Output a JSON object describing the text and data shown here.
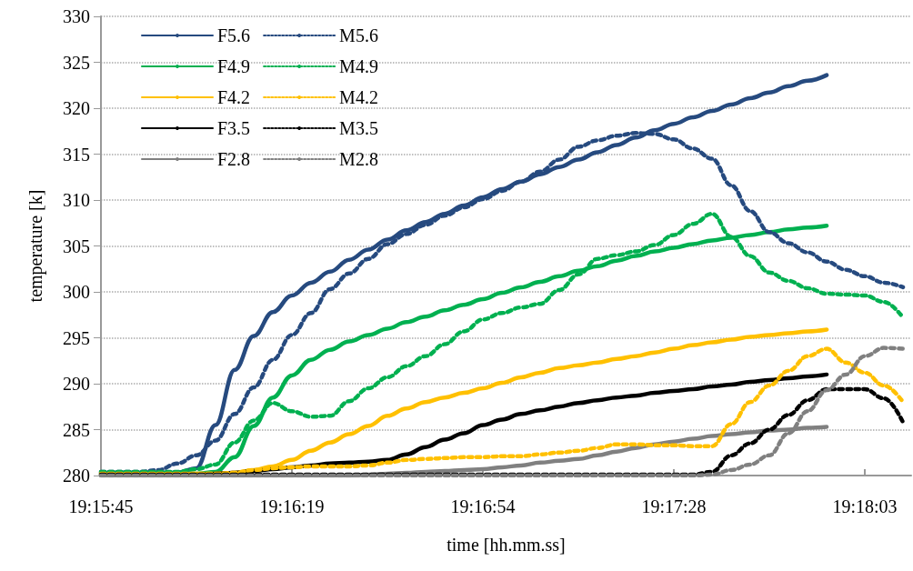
{
  "chart_data": {
    "type": "line",
    "xlabel": "time [hh.mm.ss]",
    "ylabel": "temperature [k]",
    "xlim": [
      19.2625,
      19.30316
    ],
    "xticks": [
      {
        "value": 19.2625,
        "label": "19:15:45"
      },
      {
        "value": 19.272083,
        "label": "19:16:19"
      },
      {
        "value": 19.281667,
        "label": "19:16:54"
      },
      {
        "value": 19.29125,
        "label": "19:17:28"
      },
      {
        "value": 19.300833,
        "label": "19:18:03"
      }
    ],
    "ylim": [
      280,
      330
    ],
    "yticks": [
      280,
      285,
      290,
      295,
      300,
      305,
      310,
      315,
      320,
      325,
      330
    ],
    "grid": "y",
    "legend": "top left",
    "marker": "none",
    "x": [
      19.2625,
      19.26346,
      19.26442,
      19.26538,
      19.26633,
      19.26729,
      19.26825,
      19.26921,
      19.27017,
      19.27113,
      19.27208,
      19.27304,
      19.274,
      19.27496,
      19.27592,
      19.27688,
      19.27783,
      19.27879,
      19.27975,
      19.28071,
      19.28167,
      19.28263,
      19.28358,
      19.28454,
      19.2855,
      19.28646,
      19.28742,
      19.28838,
      19.28933,
      19.29029,
      19.29125,
      19.29221,
      19.29317,
      19.29413,
      19.29508,
      19.29604,
      19.297,
      19.29796,
      19.29892,
      19.29988,
      19.30083,
      19.30179,
      19.30275
    ],
    "series": [
      {
        "name": "F5.6",
        "color": "#264a7f",
        "line_style": "solid",
        "values": [
          280.3,
          280.3,
          280.3,
          280.3,
          280.3,
          280.8,
          285.5,
          291.5,
          295.2,
          297.8,
          299.6,
          301.0,
          302.2,
          303.5,
          304.6,
          305.7,
          306.7,
          307.6,
          308.5,
          309.4,
          310.3,
          311.2,
          312.0,
          312.8,
          313.6,
          314.4,
          315.2,
          316.0,
          316.8,
          317.6,
          318.3,
          319.0,
          319.7,
          320.4,
          321.1,
          321.7,
          322.4,
          323.0,
          323.6,
          null,
          null,
          null,
          null
        ]
      },
      {
        "name": "F4.9",
        "color": "#00b050",
        "line_style": "solid",
        "values": [
          280.2,
          280.2,
          280.2,
          280.2,
          280.2,
          280.2,
          280.4,
          282.0,
          285.4,
          288.5,
          290.9,
          292.6,
          293.7,
          294.6,
          295.3,
          296.0,
          296.7,
          297.3,
          298.0,
          298.6,
          299.2,
          299.9,
          300.5,
          301.1,
          301.7,
          302.3,
          302.8,
          303.4,
          303.9,
          304.4,
          304.8,
          305.2,
          305.6,
          305.9,
          306.2,
          306.5,
          306.8,
          307.0,
          307.2,
          null,
          null,
          null,
          null
        ]
      },
      {
        "name": "F4.2",
        "color": "#ffc000",
        "line_style": "solid",
        "values": [
          280.2,
          280.2,
          280.2,
          280.2,
          280.2,
          280.2,
          280.2,
          280.3,
          280.6,
          281.0,
          281.7,
          282.7,
          283.6,
          284.5,
          285.4,
          286.5,
          287.3,
          288.0,
          288.5,
          289.0,
          289.5,
          290.1,
          290.7,
          291.2,
          291.7,
          292.0,
          292.3,
          292.7,
          293.0,
          293.4,
          293.8,
          294.2,
          294.5,
          294.8,
          295.1,
          295.3,
          295.5,
          295.7,
          295.9,
          null,
          null,
          null,
          null
        ]
      },
      {
        "name": "F3.5",
        "color": "#000000",
        "line_style": "solid",
        "values": [
          280.1,
          280.1,
          280.1,
          280.1,
          280.1,
          280.1,
          280.2,
          280.3,
          280.5,
          280.7,
          280.9,
          281.1,
          281.3,
          281.4,
          281.5,
          281.7,
          282.3,
          283.1,
          283.9,
          284.6,
          285.5,
          286.1,
          286.7,
          287.1,
          287.5,
          287.9,
          288.2,
          288.5,
          288.7,
          289.0,
          289.2,
          289.4,
          289.7,
          289.9,
          290.2,
          290.4,
          290.6,
          290.8,
          291.0,
          null,
          null,
          null,
          null
        ]
      },
      {
        "name": "F2.8",
        "color": "#808080",
        "line_style": "solid",
        "values": [
          280.0,
          280.0,
          280.0,
          280.0,
          280.0,
          280.0,
          280.0,
          280.0,
          280.0,
          280.0,
          280.0,
          280.0,
          280.0,
          280.0,
          280.1,
          280.2,
          280.3,
          280.4,
          280.5,
          280.6,
          280.7,
          280.9,
          281.1,
          281.4,
          281.6,
          281.8,
          282.2,
          282.6,
          283.0,
          283.4,
          283.7,
          284.0,
          284.3,
          284.5,
          284.7,
          284.9,
          285.0,
          285.2,
          285.3,
          null,
          null,
          null,
          null
        ]
      },
      {
        "name": "M5.6",
        "color": "#264a7f",
        "line_style": "dotted",
        "values": [
          280.4,
          280.4,
          280.4,
          280.6,
          281.3,
          282.2,
          283.8,
          286.7,
          289.6,
          292.6,
          295.3,
          297.7,
          300.3,
          302.0,
          303.6,
          305.2,
          306.3,
          307.3,
          308.3,
          309.2,
          310.1,
          311.0,
          312.0,
          313.1,
          314.4,
          315.8,
          316.5,
          317.0,
          317.3,
          317.2,
          316.6,
          315.6,
          314.5,
          311.6,
          308.8,
          306.5,
          305.3,
          304.3,
          303.3,
          302.4,
          301.7,
          301.0,
          300.5
        ]
      },
      {
        "name": "M4.9",
        "color": "#00b050",
        "line_style": "dotted",
        "values": [
          280.4,
          280.4,
          280.4,
          280.4,
          280.4,
          280.7,
          281.2,
          283.6,
          286.0,
          287.9,
          287.0,
          286.4,
          286.5,
          288.1,
          289.5,
          290.7,
          291.9,
          293.0,
          294.3,
          295.7,
          297.0,
          297.7,
          298.3,
          298.7,
          300.2,
          301.9,
          303.6,
          304.0,
          304.4,
          305.1,
          306.2,
          307.4,
          308.5,
          306.0,
          303.9,
          302.1,
          301.2,
          300.4,
          299.8,
          299.7,
          299.6,
          298.9,
          297.2
        ]
      },
      {
        "name": "M4.2",
        "color": "#ffc000",
        "line_style": "dotted",
        "values": [
          280.2,
          280.2,
          280.2,
          280.2,
          280.2,
          280.2,
          280.2,
          280.3,
          280.6,
          280.8,
          280.9,
          281.0,
          281.0,
          281.0,
          281.1,
          281.4,
          281.7,
          281.8,
          281.9,
          282.0,
          282.0,
          282.1,
          282.1,
          282.3,
          282.5,
          282.7,
          283.0,
          283.4,
          283.4,
          283.3,
          283.3,
          283.2,
          283.2,
          285.6,
          288.0,
          289.8,
          291.4,
          293.0,
          293.8,
          292.3,
          291.2,
          289.8,
          288.0
        ]
      },
      {
        "name": "M3.5",
        "color": "#000000",
        "line_style": "dotted",
        "values": [
          280.1,
          280.1,
          280.1,
          280.1,
          280.1,
          280.1,
          280.1,
          280.1,
          280.1,
          280.1,
          280.1,
          280.1,
          280.1,
          280.1,
          280.1,
          280.1,
          280.1,
          280.1,
          280.1,
          280.1,
          280.1,
          280.1,
          280.1,
          280.1,
          280.1,
          280.1,
          280.1,
          280.1,
          280.1,
          280.1,
          280.1,
          280.1,
          280.4,
          282.2,
          283.5,
          285.0,
          286.6,
          288.2,
          289.4,
          289.4,
          289.4,
          288.4,
          285.8
        ]
      },
      {
        "name": "M2.8",
        "color": "#808080",
        "line_style": "dotted",
        "values": [
          280.0,
          280.0,
          280.0,
          280.0,
          280.0,
          280.0,
          280.0,
          280.0,
          280.0,
          280.0,
          280.0,
          280.0,
          280.0,
          280.0,
          280.0,
          280.0,
          280.0,
          280.0,
          280.0,
          280.0,
          280.0,
          280.0,
          280.0,
          280.0,
          280.0,
          280.0,
          280.0,
          280.0,
          280.0,
          280.0,
          280.0,
          280.0,
          280.1,
          280.6,
          281.2,
          282.2,
          284.6,
          287.0,
          289.3,
          291.0,
          293.0,
          293.9,
          293.8
        ]
      }
    ]
  }
}
